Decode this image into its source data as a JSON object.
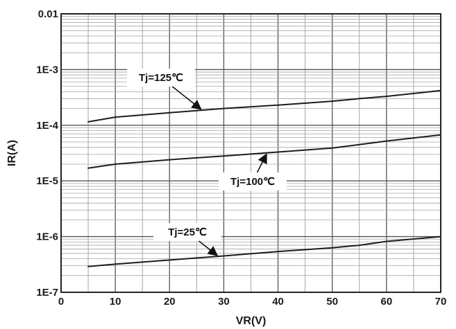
{
  "chart_data": {
    "type": "line",
    "title": "",
    "xlabel": "VR(V)",
    "ylabel": "IR(A)",
    "xlim": [
      0,
      70
    ],
    "ylim": [
      1e-07,
      0.01
    ],
    "yscale": "log",
    "grid": true,
    "x_ticks": [
      0,
      10,
      20,
      30,
      40,
      50,
      60,
      70
    ],
    "x_tick_labels": [
      "0",
      "10",
      "20",
      "30",
      "40",
      "50",
      "60",
      "70"
    ],
    "y_ticks": [
      1e-07,
      1e-06,
      1e-05,
      0.0001,
      0.001,
      0.01
    ],
    "y_tick_labels": [
      "1E-7",
      "1E-6",
      "1E-5",
      "1E-4",
      "1E-3",
      "0.01"
    ],
    "x": [
      5,
      10,
      20,
      30,
      40,
      50,
      55,
      60,
      70
    ],
    "series": [
      {
        "name": "Tj=125℃",
        "values": [
          0.000115,
          0.00014,
          0.000168,
          0.0002,
          0.00023,
          0.00027,
          0.0003,
          0.00033,
          0.00042
        ]
      },
      {
        "name": "Tj=100℃",
        "values": [
          1.7e-05,
          2e-05,
          2.4e-05,
          2.8e-05,
          3.3e-05,
          3.9e-05,
          4.5e-05,
          5.2e-05,
          6.7e-05
        ]
      },
      {
        "name": "Tj=25℃",
        "values": [
          2.9e-07,
          3.2e-07,
          3.8e-07,
          4.5e-07,
          5.4e-07,
          6.3e-07,
          7e-07,
          8.2e-07,
          1e-06
        ]
      }
    ],
    "annotations": [
      {
        "text": "Tj=125℃",
        "series": 0,
        "x": 26
      },
      {
        "text": "Tj=100℃",
        "series": 1,
        "x": 38
      },
      {
        "text": "Tj=25℃",
        "series": 2,
        "x": 29
      }
    ]
  }
}
